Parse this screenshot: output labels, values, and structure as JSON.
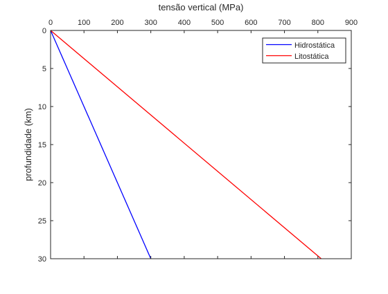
{
  "chart_data": {
    "type": "line",
    "title": "",
    "xlabel": "tensão vertical (MPa)",
    "ylabel": "profundidade (km)",
    "xlim": [
      0,
      900
    ],
    "ylim": [
      0,
      30
    ],
    "x_ticks": [
      0,
      100,
      200,
      300,
      400,
      500,
      600,
      700,
      800,
      900
    ],
    "y_ticks": [
      0,
      5,
      10,
      15,
      20,
      25,
      30
    ],
    "x_axis_position": "top",
    "y_axis_direction": "reversed",
    "grid": false,
    "legend_position": "top-right",
    "series": [
      {
        "name": "Hidrostática",
        "color": "#0000ff",
        "x": [
          0,
          300
        ],
        "y": [
          0,
          30
        ]
      },
      {
        "name": "Litostática",
        "color": "#ff0000",
        "x": [
          0,
          810
        ],
        "y": [
          0,
          30
        ]
      }
    ]
  }
}
